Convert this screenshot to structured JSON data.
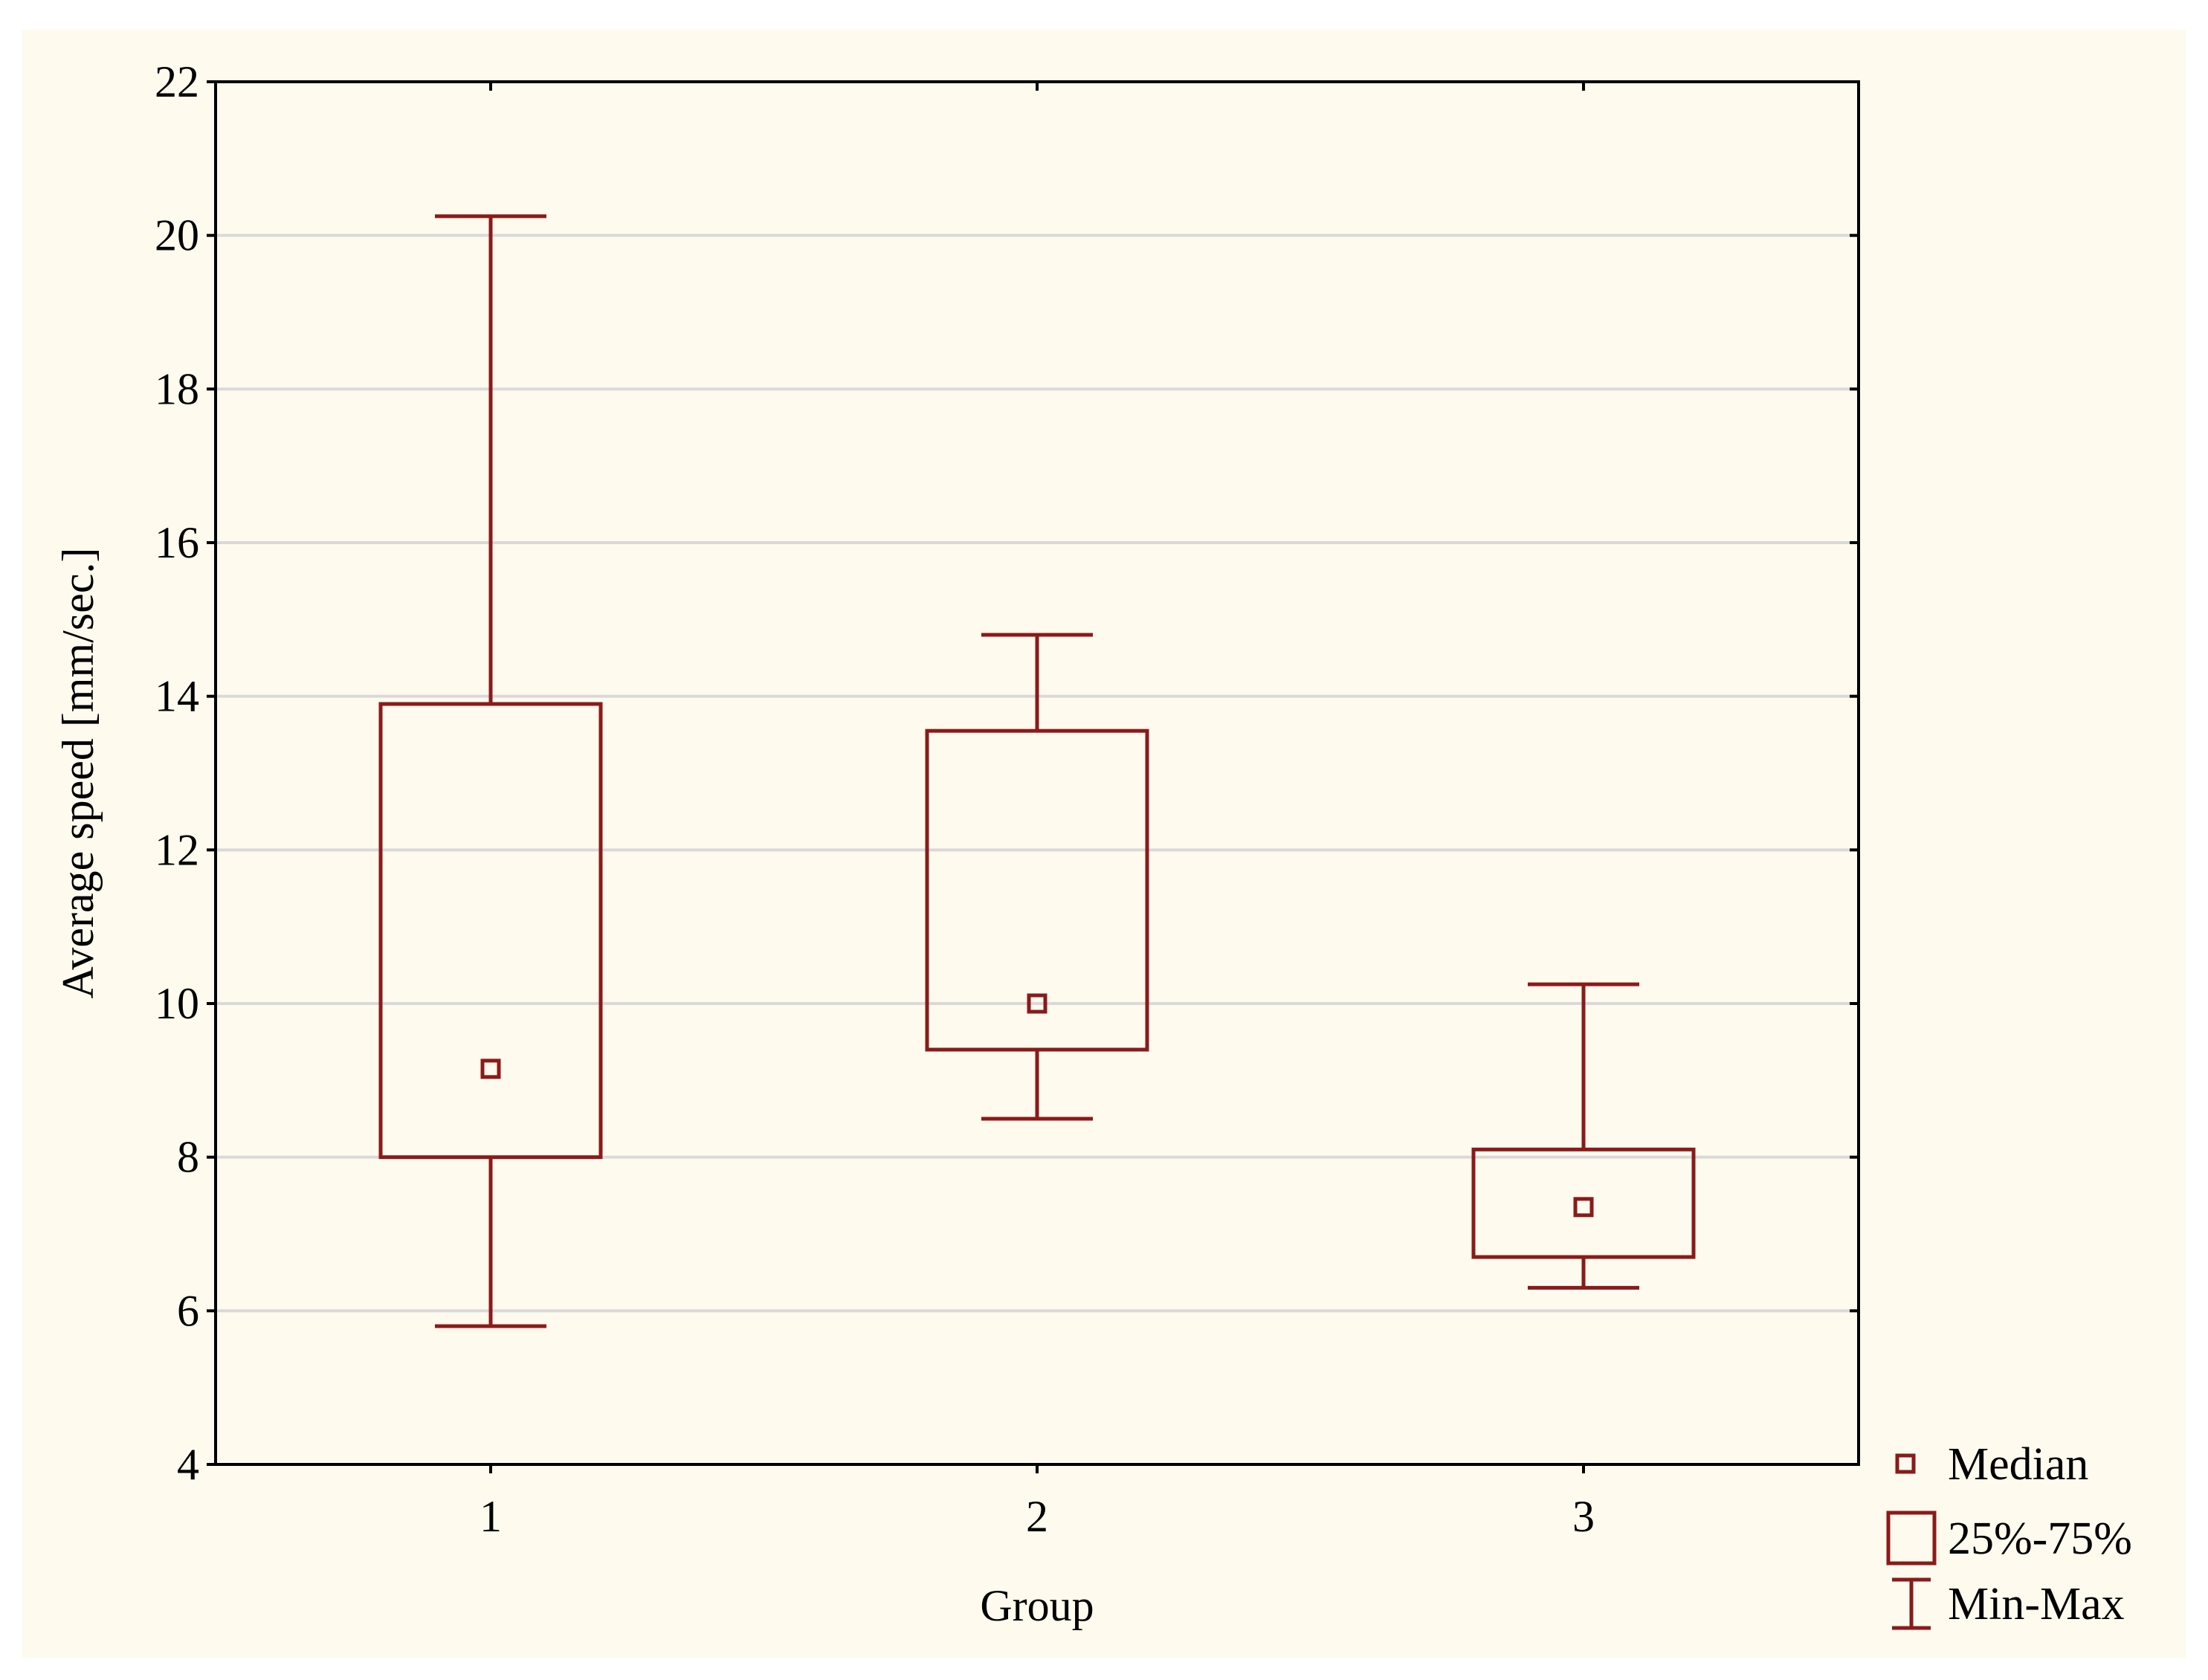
{
  "chart_data": {
    "type": "boxplot",
    "xlabel": "Group",
    "ylabel": "Average speed [mm/sec.]",
    "ylim": [
      4,
      22
    ],
    "yticks": [
      4,
      6,
      8,
      10,
      12,
      14,
      16,
      18,
      20,
      22
    ],
    "grid": "horizontal",
    "legend_position": "bottom-right",
    "categories": [
      "1",
      "2",
      "3"
    ],
    "boxes": [
      {
        "group": "1",
        "min": 5.8,
        "q1": 8.0,
        "median": 9.15,
        "q3": 13.9,
        "max": 20.25
      },
      {
        "group": "2",
        "min": 8.5,
        "q1": 9.4,
        "median": 10.0,
        "q3": 13.55,
        "max": 14.8
      },
      {
        "group": "3",
        "min": 6.3,
        "q1": 6.7,
        "median": 7.35,
        "q3": 8.1,
        "max": 10.25
      }
    ],
    "legend": [
      {
        "symbol": "median-marker",
        "label": "Median"
      },
      {
        "symbol": "box",
        "label": "25%-75%"
      },
      {
        "symbol": "whisker",
        "label": "Min-Max"
      }
    ],
    "colors": {
      "series": "#8b1a1a",
      "grid": "#d9d9d9",
      "axis": "#000000",
      "background": "#fefaee"
    }
  }
}
